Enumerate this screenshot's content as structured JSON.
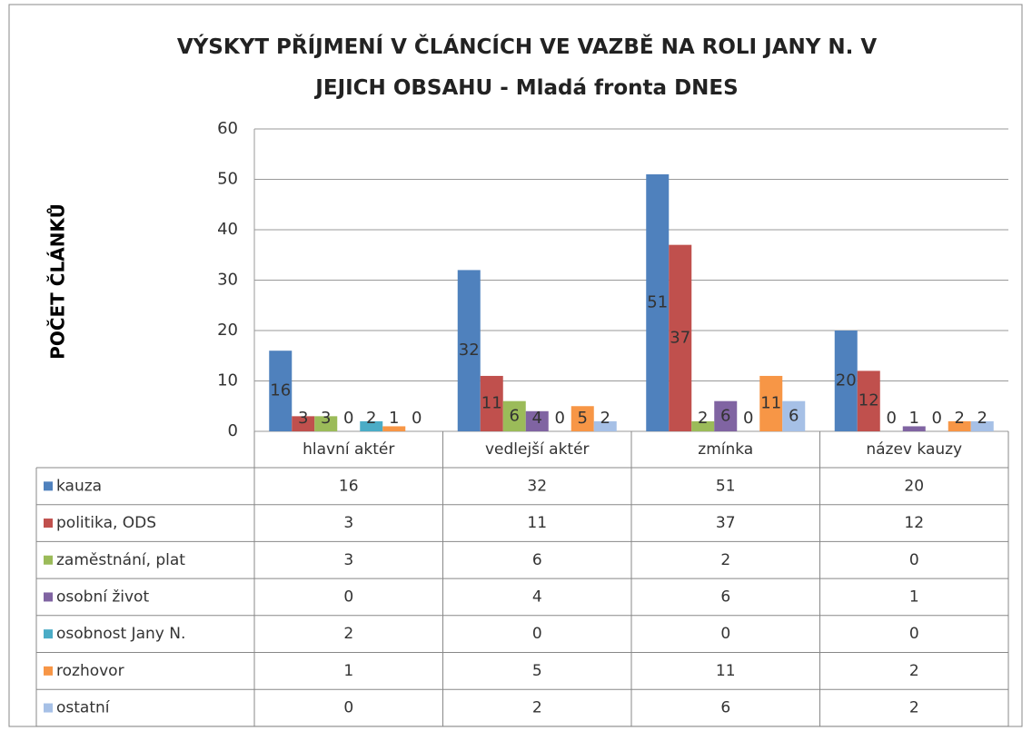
{
  "chart_data": {
    "type": "bar",
    "title": "VÝSKYT PŘÍJMENÍ V ČLÁNCÍCH VE VAZBĚ NA ROLI JANY N. V JEJICH OBSAHU - Mladá fronta DNES",
    "ylabel": "POČET ČLÁNKŮ",
    "categories": [
      "hlavní aktér",
      "vedlejší aktér",
      "zmínka",
      "název kauzy"
    ],
    "series": [
      {
        "name": "kauza",
        "color": "#4f81bd",
        "values": [
          16,
          32,
          51,
          20
        ]
      },
      {
        "name": "politika, ODS",
        "color": "#c0504d",
        "values": [
          3,
          11,
          37,
          12
        ]
      },
      {
        "name": "zaměstnání, plat",
        "color": "#9bbb59",
        "values": [
          3,
          6,
          2,
          0
        ]
      },
      {
        "name": "osobní život",
        "color": "#8064a2",
        "values": [
          0,
          4,
          6,
          1
        ]
      },
      {
        "name": "osobnost Jany N.",
        "color": "#4bacc6",
        "values": [
          2,
          0,
          0,
          0
        ]
      },
      {
        "name": "rozhovor",
        "color": "#f79646",
        "values": [
          1,
          5,
          11,
          2
        ]
      },
      {
        "name": "ostatní",
        "color": "#a6c0e6",
        "values": [
          0,
          2,
          6,
          2
        ]
      }
    ],
    "ylim": [
      0,
      60
    ],
    "yticks": [
      0,
      10,
      20,
      30,
      40,
      50,
      60
    ],
    "grid": true,
    "data_table": true
  }
}
